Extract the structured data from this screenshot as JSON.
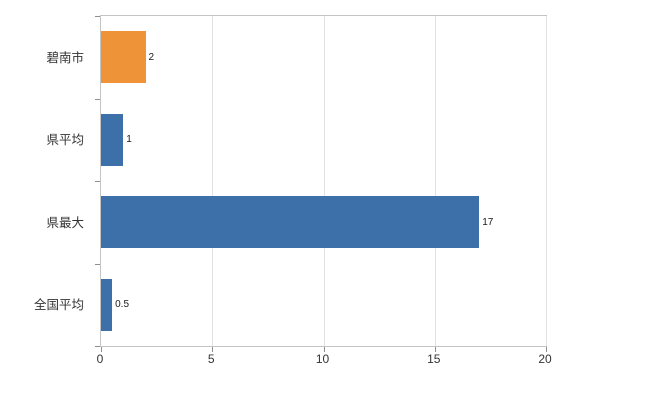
{
  "chart_data": {
    "type": "bar",
    "orientation": "horizontal",
    "title": "",
    "xlabel": "",
    "ylabel": "",
    "categories": [
      "碧南市",
      "県平均",
      "県最大",
      "全国平均"
    ],
    "values": [
      2,
      1,
      17,
      0.5
    ],
    "value_labels": [
      "2",
      "1",
      "17",
      "0.5"
    ],
    "bar_colors": [
      "#ef9338",
      "#3d6fa8",
      "#3d6fa8",
      "#3d6fa8"
    ],
    "xlim": [
      0,
      20
    ],
    "xticks": [
      0,
      5,
      10,
      15,
      20
    ],
    "xtick_labels": [
      "0",
      "5",
      "10",
      "15",
      "20"
    ],
    "grid": "vertical",
    "legend": "none",
    "palette": {
      "highlight_bar": "#ef9338",
      "default_bar": "#3d6fa8",
      "gridline": "#e2e2e2",
      "frame": "#c4c4c4",
      "tick": "#8f8f8f",
      "label_text": "#333333",
      "value_text": "#1a1a1a",
      "background": "#ffffff"
    }
  }
}
